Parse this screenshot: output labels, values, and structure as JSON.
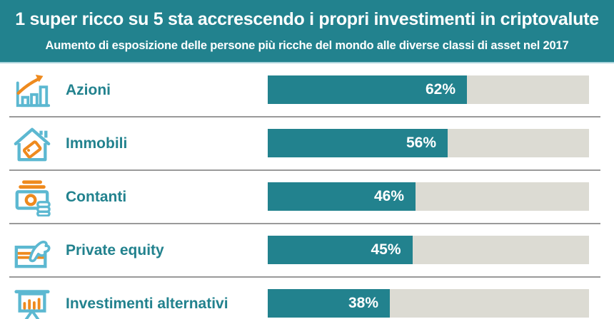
{
  "header": {
    "title": "1 super ricco su 5 sta accrescendo i propri investimenti in criptovalute",
    "subtitle": "Aumento di esposizione delle persone più ricche del mondo alle diverse classi di asset nel 2017"
  },
  "chart_data": {
    "type": "bar",
    "orientation": "horizontal",
    "title": "1 super ricco su 5 sta accrescendo i propri investimenti in criptovalute",
    "subtitle": "Aumento di esposizione delle persone più ricche del mondo alle diverse classi di asset nel 2017",
    "categories": [
      "Azioni",
      "Immobili",
      "Contanti",
      "Private equity",
      "Investimenti alternativi"
    ],
    "values": [
      62,
      56,
      46,
      45,
      38
    ],
    "xlim": [
      0,
      100
    ],
    "grid": false,
    "legend": false,
    "items": [
      {
        "label": "Azioni",
        "value": 62,
        "value_label": "62%",
        "icon": "bar-chart-up"
      },
      {
        "label": "Immobili",
        "value": 56,
        "value_label": "56%",
        "icon": "house-tag"
      },
      {
        "label": "Contanti",
        "value": 46,
        "value_label": "46%",
        "icon": "cash"
      },
      {
        "label": "Private equity",
        "value": 45,
        "value_label": "45%",
        "icon": "hand-card"
      },
      {
        "label": "Investimenti alternativi",
        "value": 38,
        "value_label": "38%",
        "icon": "presentation-chart"
      }
    ]
  },
  "colors": {
    "teal": "#22828e",
    "track": "#dcdbd3",
    "separator": "#9a9a9a",
    "header_underline": "#abd4dc",
    "icon_blue": "#5cb8d1",
    "icon_orange": "#ee8a1e"
  }
}
